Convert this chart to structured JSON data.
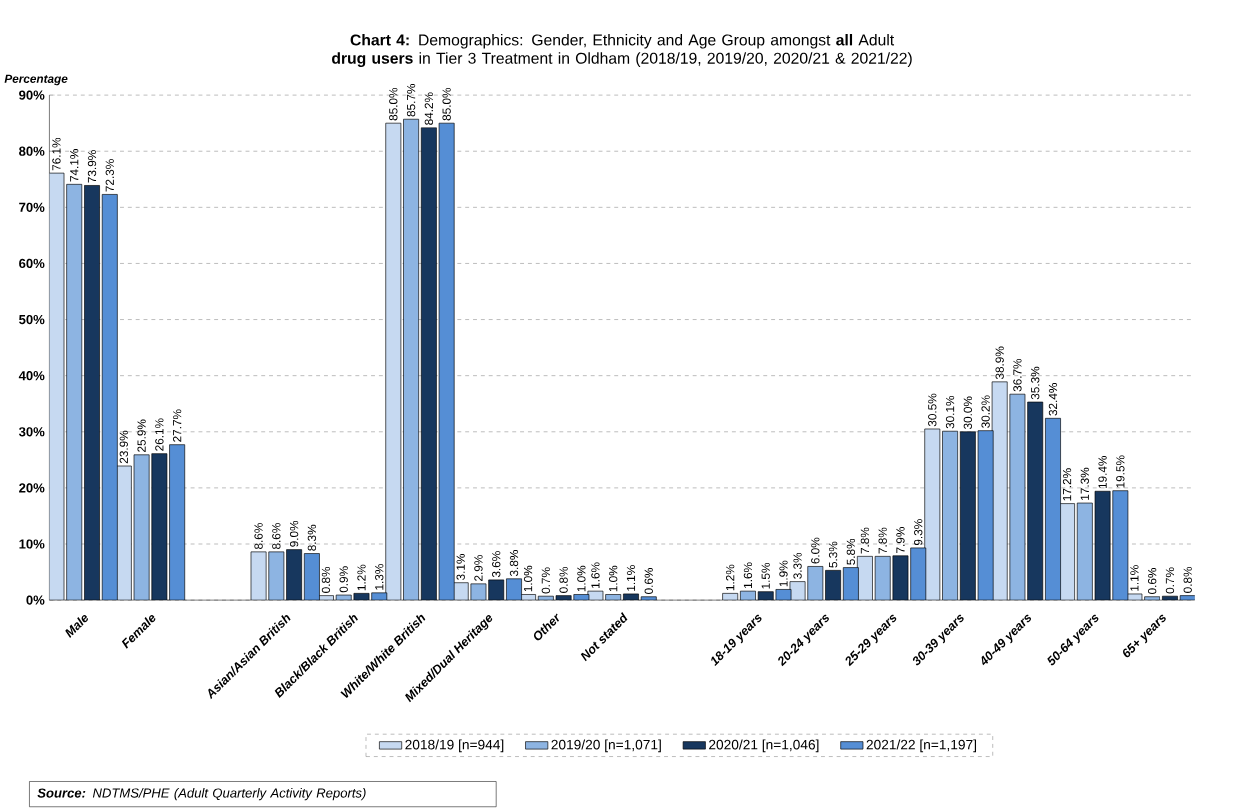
{
  "chart_data": {
    "type": "bar",
    "title": "**Chart 4:** Demographics: Gender, Ethnicity and Age Group amongst **all** Adult **drug users** in Tier 3 Treatment in Oldham (2018/19, 2019/20, 2020/21 & 2021/22)",
    "ylabel": "Percentage",
    "categories": [
      "Male",
      "Female",
      null,
      "Asian/Asian British",
      "Black/Black British",
      "White/White British",
      "Mixed/Dual Heritage",
      "Other",
      "Not stated",
      null,
      "18-19 years",
      "20-24 years",
      "25-29 years",
      "30-39 years",
      "40-49 years",
      "50-64 years",
      "65+ years"
    ],
    "series": [
      {
        "name": "2018/19 [n=944]",
        "color": "#c6d9f1",
        "values": [
          76.1,
          23.9,
          null,
          8.6,
          0.8,
          85.0,
          3.1,
          1.0,
          1.6,
          null,
          1.2,
          3.3,
          7.8,
          30.5,
          38.9,
          17.2,
          1.1
        ],
        "value_labels": [
          "76.1%",
          "23.9%",
          null,
          "8.6%",
          "0.8%",
          "85.0%",
          "3.1%",
          "1.0%",
          "1.6%",
          null,
          "1.2%",
          "3.3%",
          "7.8%",
          "30.5%",
          "38.9%",
          "17.2%",
          "1.1%"
        ]
      },
      {
        "name": "2019/20 [n=1,071]",
        "color": "#8db4e2",
        "values": [
          74.1,
          25.9,
          null,
          8.6,
          0.9,
          85.7,
          2.9,
          0.7,
          1.0,
          null,
          1.6,
          6.0,
          7.8,
          30.1,
          36.7,
          17.3,
          0.6
        ],
        "value_labels": [
          "74.1%",
          "25.9%",
          null,
          "8.6%",
          "0.9%",
          "85.7%",
          "2.9%",
          "0.7%",
          "1.0%",
          null,
          "1.6%",
          "6.0%",
          "7.8%",
          "30.1%",
          "36.7%",
          "17.3%",
          "0.6%"
        ]
      },
      {
        "name": "2020/21 [n=1,046]",
        "color": "#17375e",
        "values": [
          73.9,
          26.1,
          null,
          9.0,
          1.2,
          84.2,
          3.6,
          0.8,
          1.1,
          null,
          1.5,
          5.3,
          7.9,
          30.0,
          35.3,
          19.4,
          0.7
        ],
        "value_labels": [
          "73.9%",
          "26.1%",
          null,
          "9.0%",
          "1.2%",
          "84.2%",
          "3.6%",
          "0.8%",
          "1.1%",
          null,
          "1.5%",
          "5.3%",
          "7.9%",
          "30.0%",
          "35.3%",
          "19.4%",
          "0.7%"
        ]
      },
      {
        "name": "2021/22 [n=1,197]",
        "color": "#558ed5",
        "values": [
          72.3,
          27.7,
          null,
          8.3,
          1.3,
          85.0,
          3.8,
          1.0,
          0.6,
          null,
          1.9,
          5.8,
          9.3,
          30.2,
          32.4,
          19.5,
          0.8
        ],
        "value_labels": [
          "72.3%",
          "27.7%",
          null,
          "8.3%",
          "1.3%",
          "85.0%",
          "3.8%",
          "1.0%",
          "0.6%",
          null,
          "1.9%",
          "5.8%",
          "9.3%",
          "30.2%",
          "32.4%",
          "19.5%",
          "0.8%"
        ]
      }
    ],
    "ylim": [
      0,
      90
    ],
    "yticks": [
      {
        "value": 0,
        "label": "0%"
      },
      {
        "value": 10,
        "label": "10%"
      },
      {
        "value": 20,
        "label": "20%"
      },
      {
        "value": 30,
        "label": "30%"
      },
      {
        "value": 40,
        "label": "40%"
      },
      {
        "value": 50,
        "label": "50%"
      },
      {
        "value": 60,
        "label": "60%"
      },
      {
        "value": 70,
        "label": "70%"
      },
      {
        "value": 80,
        "label": "80%"
      },
      {
        "value": 90,
        "label": "90%"
      }
    ],
    "grid": "y",
    "legend": "bottom",
    "annotations": [
      "**Source:** NDTMS/PHE  (Adult Quarterly  Activity Reports)"
    ]
  }
}
